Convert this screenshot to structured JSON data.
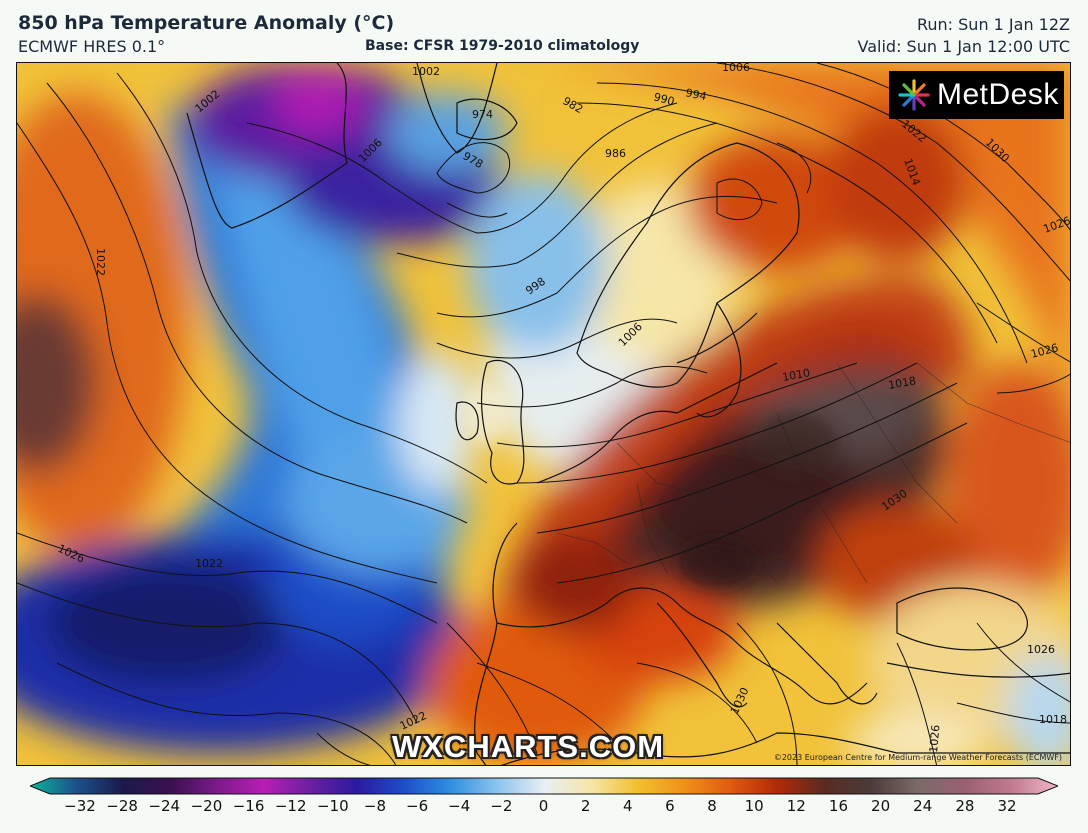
{
  "header": {
    "title": "850 hPa Temperature Anomaly (°C)",
    "model": "ECMWF HRES 0.1°",
    "base": "Base: CFSR 1979-2010 climatology",
    "run": "Run: Sun 1 Jan 12Z",
    "valid": "Valid: Sun 1 Jan 12:00 UTC"
  },
  "logo": {
    "text": "MetDesk",
    "icon": "sunburst-icon"
  },
  "watermark": "WXCHARTS.COM",
  "credit": "©2023 European Centre for Medium-range Weather Forecasts (ECMWF)",
  "isobar_labels": [
    {
      "text": "1002"
    },
    {
      "text": "974"
    },
    {
      "text": "982"
    },
    {
      "text": "990"
    },
    {
      "text": "994"
    },
    {
      "text": "1006"
    },
    {
      "text": "986"
    },
    {
      "text": "978"
    },
    {
      "text": "1022"
    },
    {
      "text": "1030"
    },
    {
      "text": "1014"
    },
    {
      "text": "1026"
    },
    {
      "text": "998"
    },
    {
      "text": "1006"
    },
    {
      "text": "1010"
    },
    {
      "text": "1018"
    },
    {
      "text": "1030"
    },
    {
      "text": "1026"
    },
    {
      "text": "1022"
    },
    {
      "text": "1022"
    },
    {
      "text": "1030"
    },
    {
      "text": "1022"
    },
    {
      "text": "1026"
    },
    {
      "text": "1018"
    },
    {
      "text": "1002"
    },
    {
      "text": "1006"
    },
    {
      "text": "1026"
    },
    {
      "text": "1026"
    }
  ],
  "colorbar": {
    "ticks": [
      "−32",
      "−28",
      "−24",
      "−20",
      "−16",
      "−12",
      "−10",
      "−8",
      "−6",
      "−4",
      "−2",
      "0",
      "2",
      "4",
      "6",
      "8",
      "10",
      "12",
      "16",
      "20",
      "24",
      "28",
      "32"
    ],
    "colors": [
      "#0fb39a",
      "#1c4f8a",
      "#1a1a4a",
      "#3a1050",
      "#7a1a8a",
      "#b81fb4",
      "#6a20a0",
      "#2a1aa0",
      "#1d4ec8",
      "#2f8fe0",
      "#8cc4ec",
      "#e8eef4",
      "#f6e6a8",
      "#f2c030",
      "#f0901a",
      "#e05a10",
      "#b02a08",
      "#5a2a20",
      "#4a3c3a",
      "#7a6a6a",
      "#9a6070",
      "#c07a90",
      "#f0b8c8"
    ]
  }
}
